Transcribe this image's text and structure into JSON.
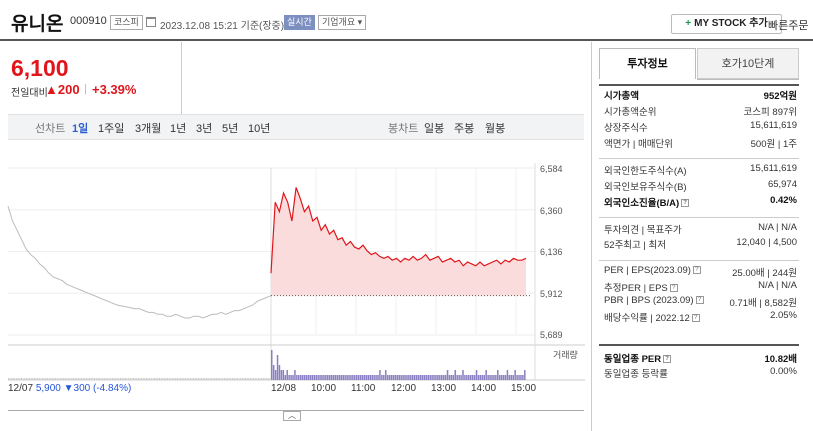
{
  "header": {
    "stock_name": "유니온",
    "stock_code": "000910",
    "market_badge": "코스피",
    "datetime": "2023.12.08 15:21 기준(장중)",
    "live_badge": "실시간",
    "corp_overview": "기업개요",
    "my_stock": "MY STOCK 추가",
    "my_stock_plus": "+",
    "quick_order": "빠른주문"
  },
  "quote": {
    "price": "6,100",
    "change_label": "전일대비",
    "change_arrow": "▲",
    "change_value": "200",
    "change_sep": "|",
    "change_pct": "+3.39%"
  },
  "toolbar": {
    "line_chart": "선차트",
    "periods": [
      "1일",
      "1주일",
      "3개월",
      "1년",
      "3년",
      "5년",
      "10년"
    ],
    "active_period": "1일",
    "candle_chart": "봉차트",
    "candle_periods": [
      "일봉",
      "주봉",
      "월봉"
    ]
  },
  "chart_data": {
    "type": "line",
    "yticks": [
      "6,584",
      "6,360",
      "6,136",
      "5,912",
      "5,689"
    ],
    "ylim": [
      5689,
      6584
    ],
    "xticks": [
      "12/08",
      "10:00",
      "11:00",
      "12:00",
      "13:00",
      "14:00",
      "15:00"
    ],
    "reference_price": 5900,
    "prev_day_label": "12/07",
    "prev_day_close": "5,900",
    "prev_day_arrow": "▼",
    "prev_day_change": "300",
    "prev_day_pct": "(-4.84%)",
    "volume_label": "거래량",
    "series": [
      {
        "values": [
          6380,
          6300,
          6250,
          6200,
          6150,
          6120,
          6100,
          6070,
          6050,
          6020,
          6000,
          5990,
          5980,
          5960,
          5950,
          5940,
          5930,
          5920,
          5910,
          5900,
          5890,
          5880,
          5870,
          5860,
          5850,
          5845,
          5840,
          5835,
          5830,
          5830,
          5820,
          5810,
          5810,
          5800,
          5800,
          5790,
          5790,
          5800,
          5790,
          5780,
          5780,
          5790,
          5790,
          5780,
          5790,
          5800,
          5800,
          5810,
          5800,
          5810,
          5820,
          5820,
          5830,
          5840,
          5850,
          5870,
          5880,
          5890,
          5900
        ]
      },
      {
        "values": [
          6020,
          6400,
          6350,
          6450,
          6400,
          6300,
          6480,
          6420,
          6350,
          6380,
          6300,
          6320,
          6250,
          6280,
          6230,
          6250,
          6200,
          6210,
          6170,
          6190,
          6160,
          6150,
          6170,
          6140,
          6120,
          6130,
          6110,
          6100,
          6110,
          6090,
          6100,
          6080,
          6100,
          6090,
          6110,
          6090,
          6100,
          6120,
          6090,
          6100,
          6110,
          6080,
          6090,
          6100,
          6080,
          6090,
          6060,
          6080,
          6070,
          6060,
          6080,
          6060,
          6070,
          6080,
          6090,
          6070,
          6090,
          6080,
          6100,
          6090,
          6090,
          6100
        ]
      }
    ],
    "volume_values": [
      6,
      3,
      2,
      5,
      3,
      2,
      2,
      1,
      2,
      1,
      1,
      1,
      2,
      1,
      1,
      1,
      1,
      1,
      1,
      1,
      1,
      1,
      1,
      1,
      1,
      1,
      1,
      1,
      1,
      1,
      1,
      1,
      1,
      1,
      1,
      1,
      1,
      1,
      1,
      1,
      1,
      1,
      1,
      1,
      1,
      1,
      1,
      1,
      1,
      1,
      1,
      1,
      1,
      1,
      1,
      1,
      2,
      1,
      1,
      2,
      1,
      1,
      1,
      1,
      1,
      1,
      1,
      1,
      1,
      1,
      1,
      1,
      1,
      1,
      1,
      1,
      1,
      1,
      1,
      1,
      1,
      1,
      1,
      1,
      1,
      1,
      1,
      1,
      1,
      1,
      1,
      2,
      1,
      1,
      1,
      2,
      1,
      1,
      1,
      2,
      1,
      1,
      1,
      1,
      1,
      1,
      2,
      1,
      1,
      1,
      1,
      2,
      1,
      1,
      1,
      1,
      1,
      2,
      1,
      1,
      1,
      1,
      2,
      1,
      1,
      1,
      2,
      1,
      1,
      1,
      1,
      2
    ],
    "volume_values_prev": [
      1,
      1,
      1,
      1,
      1,
      1,
      1,
      1,
      1,
      1,
      1,
      1,
      1,
      1,
      1,
      1,
      1,
      1,
      1,
      1,
      1,
      1,
      1,
      1,
      1,
      1,
      1,
      1,
      1,
      1,
      1,
      1,
      1,
      1,
      1,
      1,
      1,
      1,
      1,
      1,
      1,
      1,
      1,
      1,
      1,
      1,
      1,
      1,
      1,
      1,
      1,
      1,
      1,
      1,
      1,
      1,
      1,
      1,
      1,
      1,
      1,
      1,
      1,
      1,
      1,
      1,
      1,
      1,
      1,
      1,
      1,
      1,
      1,
      1,
      1,
      1,
      1,
      1,
      1,
      1,
      1,
      1,
      1,
      1,
      1,
      1,
      1,
      1,
      1,
      1,
      1,
      1,
      1,
      1,
      1,
      1,
      1,
      1,
      1,
      1,
      1,
      1,
      1,
      1,
      1,
      1,
      1,
      1,
      1,
      1,
      1,
      1,
      1,
      1,
      1,
      1,
      1,
      1,
      1,
      1,
      1,
      1,
      1,
      1,
      1,
      1,
      1,
      1,
      1,
      1,
      1,
      1,
      1,
      1,
      1,
      1,
      1,
      1,
      1,
      1,
      1,
      1,
      1,
      1,
      1,
      1,
      1,
      1,
      1,
      1,
      1,
      1,
      1,
      1,
      1,
      1,
      1,
      1,
      1,
      1,
      1,
      1
    ]
  },
  "sidebar": {
    "tab_invest": "투자정보",
    "tab_quote": "호가10단계",
    "rows1": [
      {
        "label": "시가총액",
        "value": "952억원",
        "bold": true
      },
      {
        "label": "시가총액순위",
        "value": "코스피 897위"
      },
      {
        "label": "상장주식수",
        "value": "15,611,619"
      },
      {
        "label": "액면가 | 매매단위",
        "value": "500원 | 1주"
      }
    ],
    "rows2": [
      {
        "label": "외국인한도주식수(A)",
        "value": "15,611,619"
      },
      {
        "label": "외국인보유주식수(B)",
        "value": "65,974"
      },
      {
        "label": "외국인소진율(B/A)",
        "value": "0.42%",
        "bold": true
      }
    ],
    "rows3": [
      {
        "label": "투자의견 | 목표주가",
        "value": "N/A | N/A"
      },
      {
        "label": "52주최고 | 최저",
        "value": "12,040 | 4,500"
      }
    ],
    "rows4": [
      {
        "label": "PER | EPS(2023.09)",
        "value": "25.00배 | 244원"
      },
      {
        "label": "추정PER | EPS",
        "value": "N/A | N/A"
      },
      {
        "label": "PBR | BPS (2023.09)",
        "value": "0.71배 | 8,582원"
      },
      {
        "label": "배당수익률 | 2022.12",
        "value": "2.05%"
      }
    ],
    "rows5": [
      {
        "label": "동일업종 PER",
        "value": "10.82배",
        "bold": true
      },
      {
        "label": "동일업종 등락률",
        "value": "0.00%"
      }
    ],
    "help_glyph": "?"
  }
}
